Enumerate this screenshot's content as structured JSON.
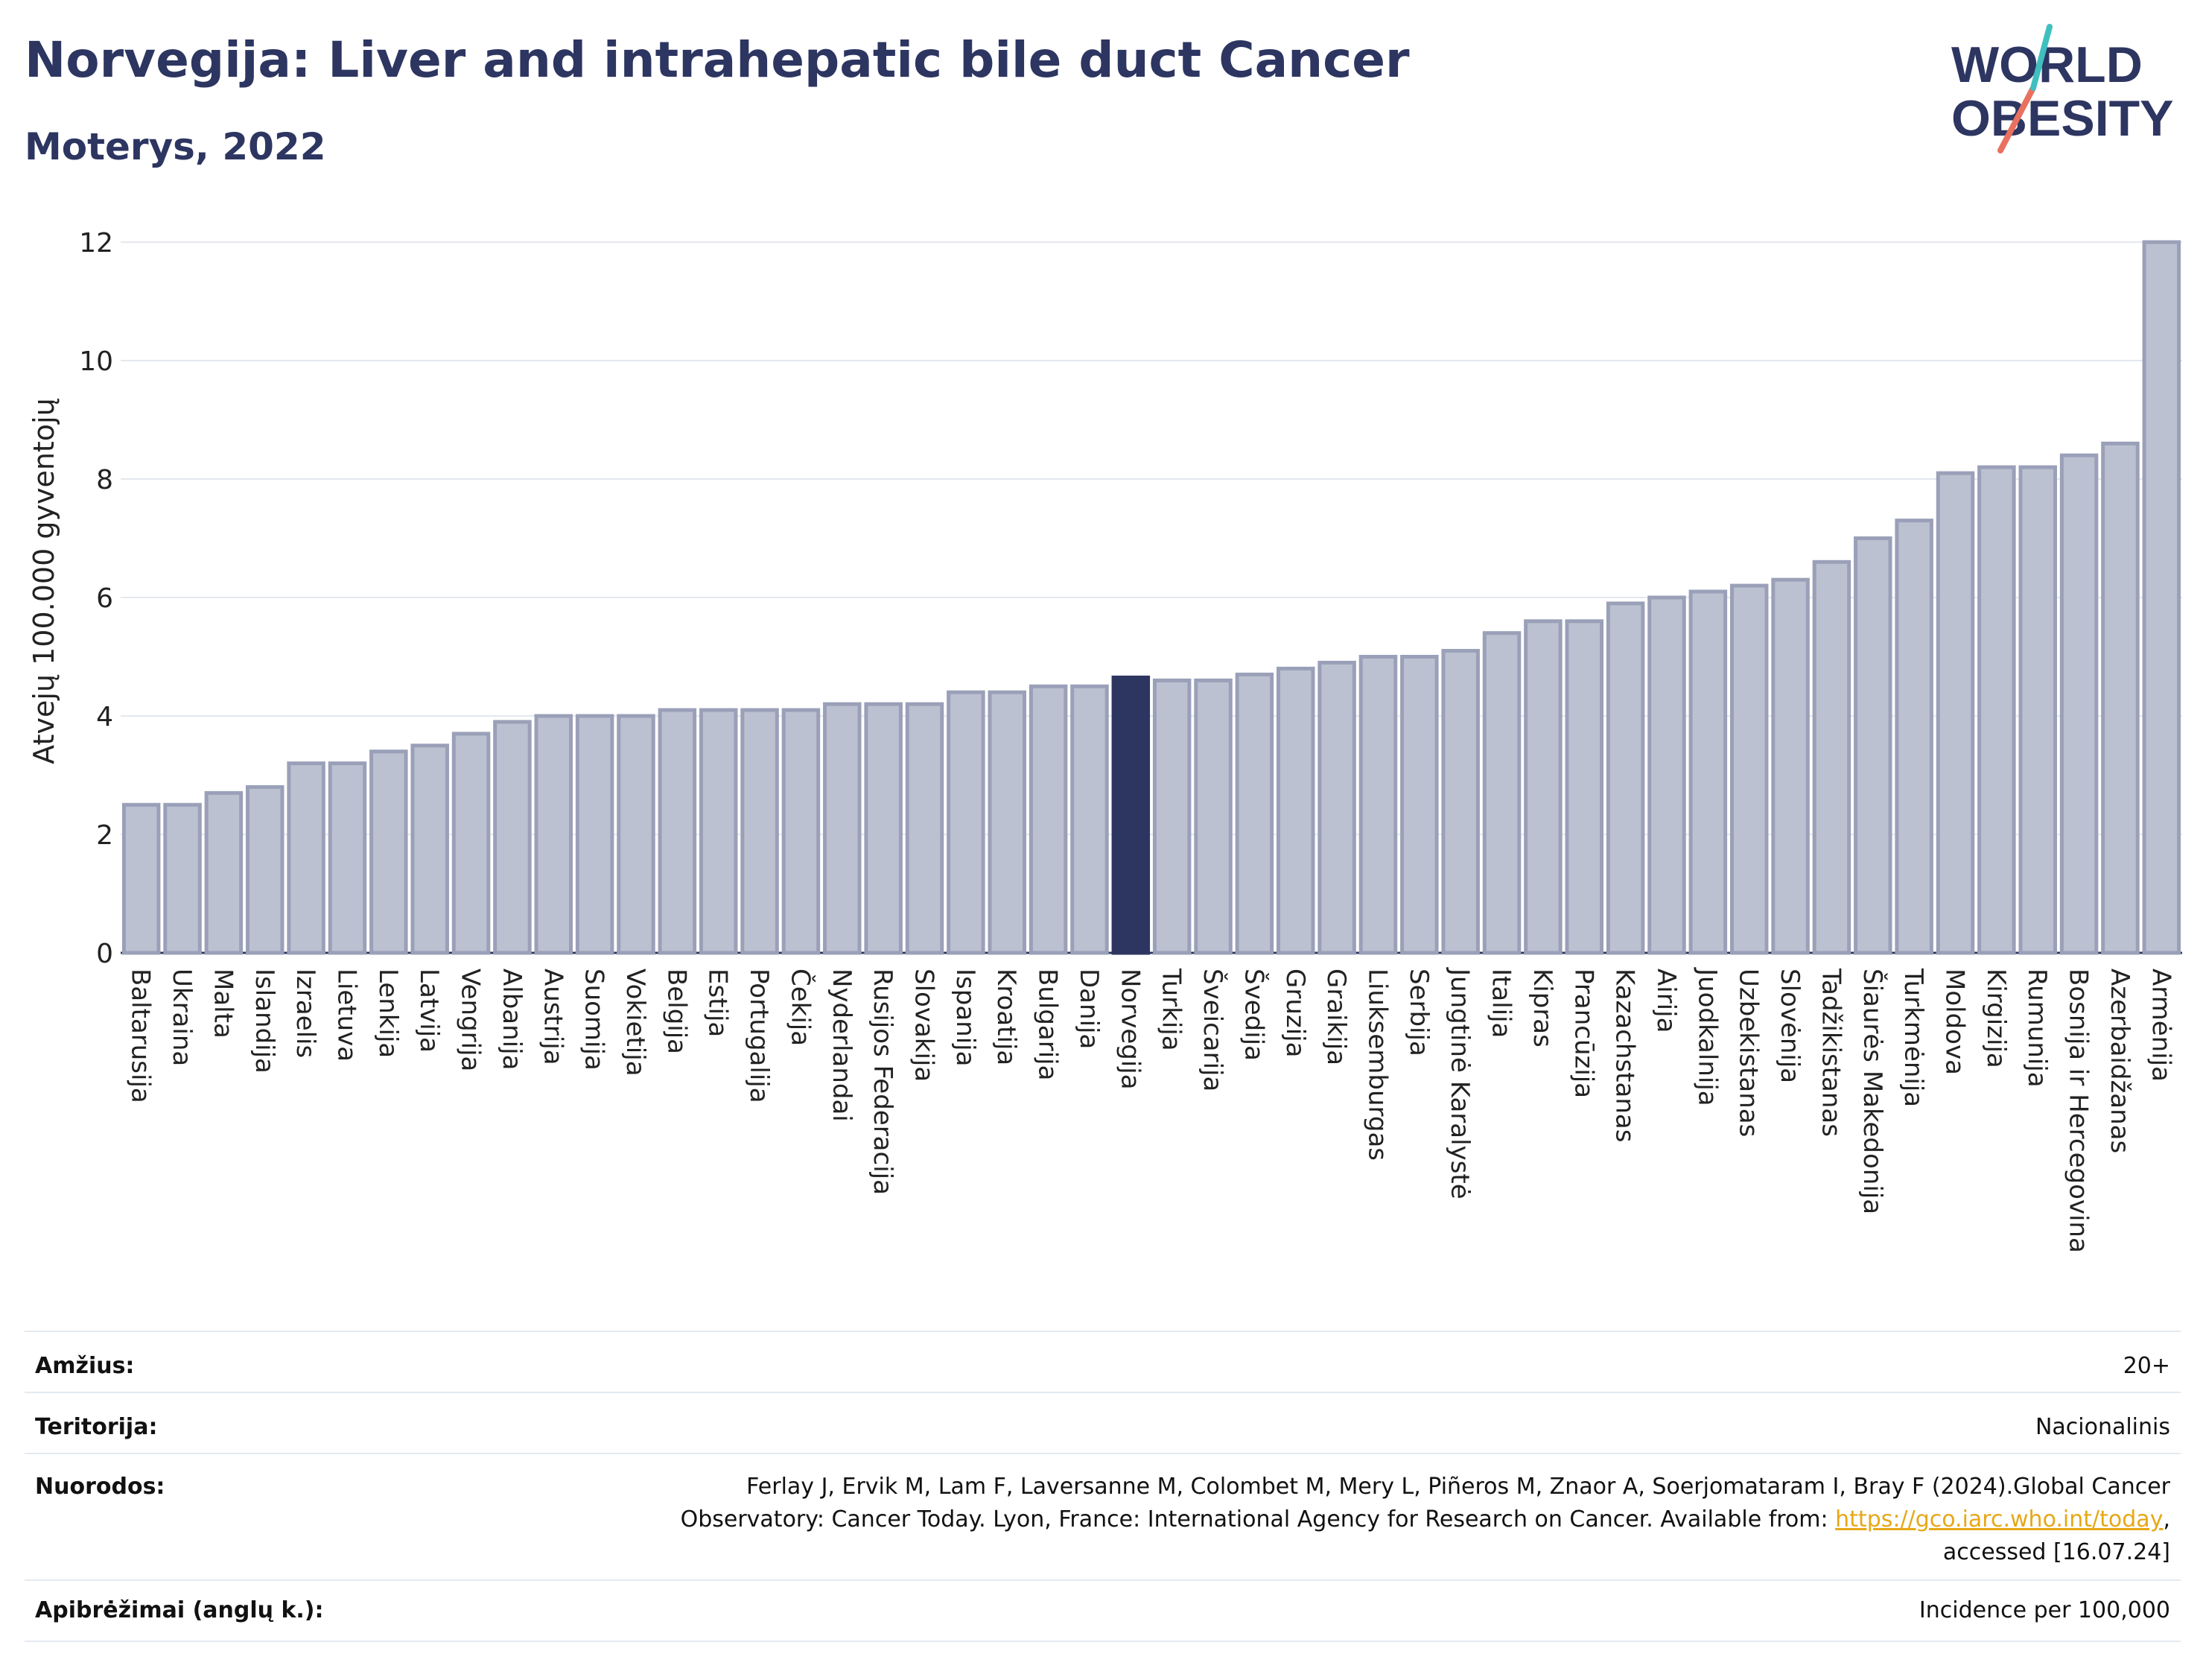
{
  "header": {
    "title": "Norvegija: Liver and intrahepatic bile duct Cancer",
    "subtitle": "Moterys, 2022"
  },
  "logo": {
    "line1": "WORLD",
    "line2": "OBESITY"
  },
  "colors": {
    "bar": "#bcc1d1",
    "bar_border": "#9aa0b8",
    "highlight": "#2d3561",
    "text": "#2d3561",
    "link": "#e6a817"
  },
  "chart_data": {
    "type": "bar",
    "ylabel": "Atvejų 100.000 gyventojų",
    "ylim": [
      0,
      12
    ],
    "yticks": [
      0,
      2,
      4,
      6,
      8,
      10,
      12
    ],
    "grid": true,
    "highlight": "Norvegija",
    "categories": [
      "Baltarusija",
      "Ukraina",
      "Malta",
      "Islandija",
      "Izraelis",
      "Lietuva",
      "Lenkija",
      "Latvija",
      "Vengrija",
      "Albanija",
      "Austrija",
      "Suomija",
      "Vokietija",
      "Belgija",
      "Estija",
      "Portugalija",
      "Čekija",
      "Nyderlandai",
      "Rusijos Federacija",
      "Slovakija",
      "Ispanija",
      "Kroatija",
      "Bulgarija",
      "Danija",
      "Norvegija",
      "Turkija",
      "Šveicarija",
      "Švedija",
      "Gruzija",
      "Graikija",
      "Liuksemburgas",
      "Serbija",
      "Jungtinė Karalystė",
      "Italija",
      "Kipras",
      "Prancūzija",
      "Kazachstanas",
      "Airija",
      "Juodkalnija",
      "Uzbekistanas",
      "Slovėnija",
      "Tadžikistanas",
      "Šiaurės Makedonija",
      "Turkmėnija",
      "Moldova",
      "Kirgizija",
      "Rumunija",
      "Bosnija ir Hercegovina",
      "Azerbaidžanas",
      "Armėnija"
    ],
    "values": [
      2.5,
      2.5,
      2.7,
      2.8,
      3.2,
      3.2,
      3.4,
      3.5,
      3.7,
      3.9,
      4.0,
      4.0,
      4.0,
      4.1,
      4.1,
      4.1,
      4.1,
      4.2,
      4.2,
      4.2,
      4.4,
      4.4,
      4.5,
      4.5,
      4.65,
      4.6,
      4.6,
      4.7,
      4.8,
      4.9,
      5.0,
      5.0,
      5.1,
      5.4,
      5.6,
      5.6,
      5.9,
      6.0,
      6.1,
      6.2,
      6.3,
      6.6,
      7.0,
      7.3,
      8.1,
      8.2,
      8.2,
      8.4,
      8.6,
      12.0
    ]
  },
  "info": {
    "age_label": "Amžius:",
    "age_value": "20+",
    "territory_label": "Teritorija:",
    "territory_value": "Nacionalinis",
    "refs_label": "Nuorodos:",
    "refs_line1": "Ferlay J, Ervik M, Lam F, Laversanne M, Colombet M, Mery L, Piñeros M, Znaor A, Soerjomataram I, Bray F (2024).Global Cancer",
    "refs_line2_pre": "Observatory: Cancer Today. Lyon, France: International Agency for Research on Cancer. Available from: ",
    "refs_link": "https://gco.iarc.who.int/today",
    "refs_line2_post": ",",
    "refs_line3": "accessed [16.07.24]",
    "defs_label": "Apibrėžimai (anglų k.):",
    "defs_value": "Incidence per 100,000"
  }
}
